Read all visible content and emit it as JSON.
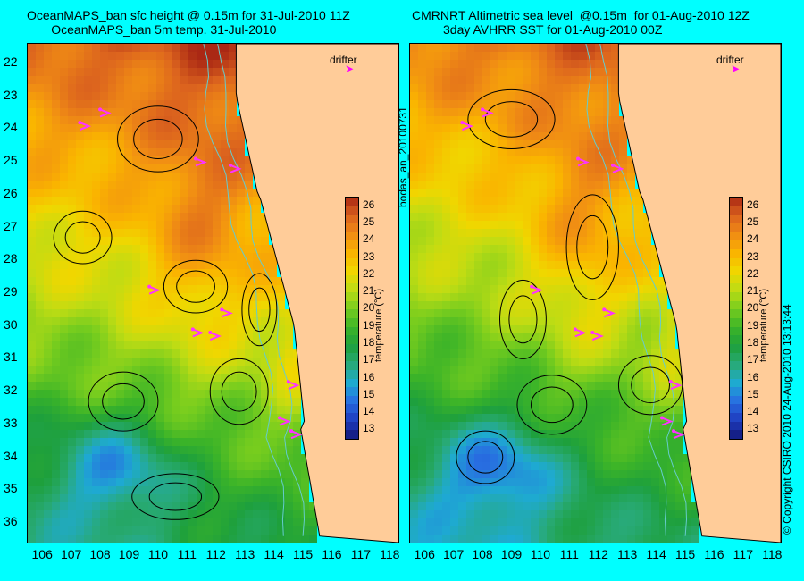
{
  "panels": [
    {
      "title_line1": "OceanMAPS_ban sfc height @ 0.15m for 31-Jul-2010 11Z",
      "title_line2": "       OceanMAPS_ban 5m temp. 31-Jul-2010"
    },
    {
      "title_line1": "CMRNRT Altimetric sea level  @0.15m  for 01-Aug-2010 12Z",
      "title_line2": "         3day AVHRR SST for 01-Aug-2010 00Z"
    }
  ],
  "drifter_label": "drifter",
  "colorbar_label": "temperature (°C)",
  "side_text_left": "bodas_an_20100731",
  "side_text_right": "© Copyright CSIRO 2010   24-Aug-2010 13:13:44",
  "colors": {
    "background": "#00ffff",
    "land": "#ffcc99",
    "drifter": "#ff33ff",
    "contour": "#000000",
    "isobath": "#66cccc"
  },
  "chart_data": [
    {
      "type": "heatmap",
      "title": "OceanMAPS_ban sfc height @ 0.15m for 31-Jul-2010 11Z / OceanMAPS_ban 5m temp. 31-Jul-2010",
      "x_ticks": [
        "106",
        "107",
        "108",
        "109",
        "110",
        "111",
        "112",
        "113",
        "114",
        "115",
        "116",
        "117",
        "118"
      ],
      "y_ticks": [
        "22",
        "23",
        "24",
        "25",
        "26",
        "27",
        "28",
        "29",
        "30",
        "31",
        "32",
        "33",
        "34",
        "35",
        "36"
      ],
      "xlim": [
        105.5,
        118.3
      ],
      "ylim": [
        36.6,
        21.4
      ],
      "colorbar_ticks": [
        "13",
        "14",
        "15",
        "16",
        "17",
        "18",
        "19",
        "20",
        "21",
        "22",
        "23",
        "24",
        "25",
        "26"
      ],
      "colorbar_range": [
        12.5,
        26.5
      ]
    },
    {
      "type": "heatmap",
      "title": "CMRNRT Altimetric sea level @0.15m for 01-Aug-2010 12Z / 3day AVHRR SST for 01-Aug-2010 00Z",
      "x_ticks": [
        "106",
        "107",
        "108",
        "109",
        "110",
        "111",
        "112",
        "113",
        "114",
        "115",
        "116",
        "117",
        "118"
      ],
      "y_ticks": [],
      "xlim": [
        105.5,
        118.3
      ],
      "ylim": [
        36.6,
        21.4
      ],
      "colorbar_ticks": [
        "13",
        "14",
        "15",
        "16",
        "17",
        "18",
        "19",
        "20",
        "21",
        "22",
        "23",
        "24",
        "25",
        "26"
      ],
      "colorbar_range": [
        12.5,
        26.5
      ]
    }
  ]
}
